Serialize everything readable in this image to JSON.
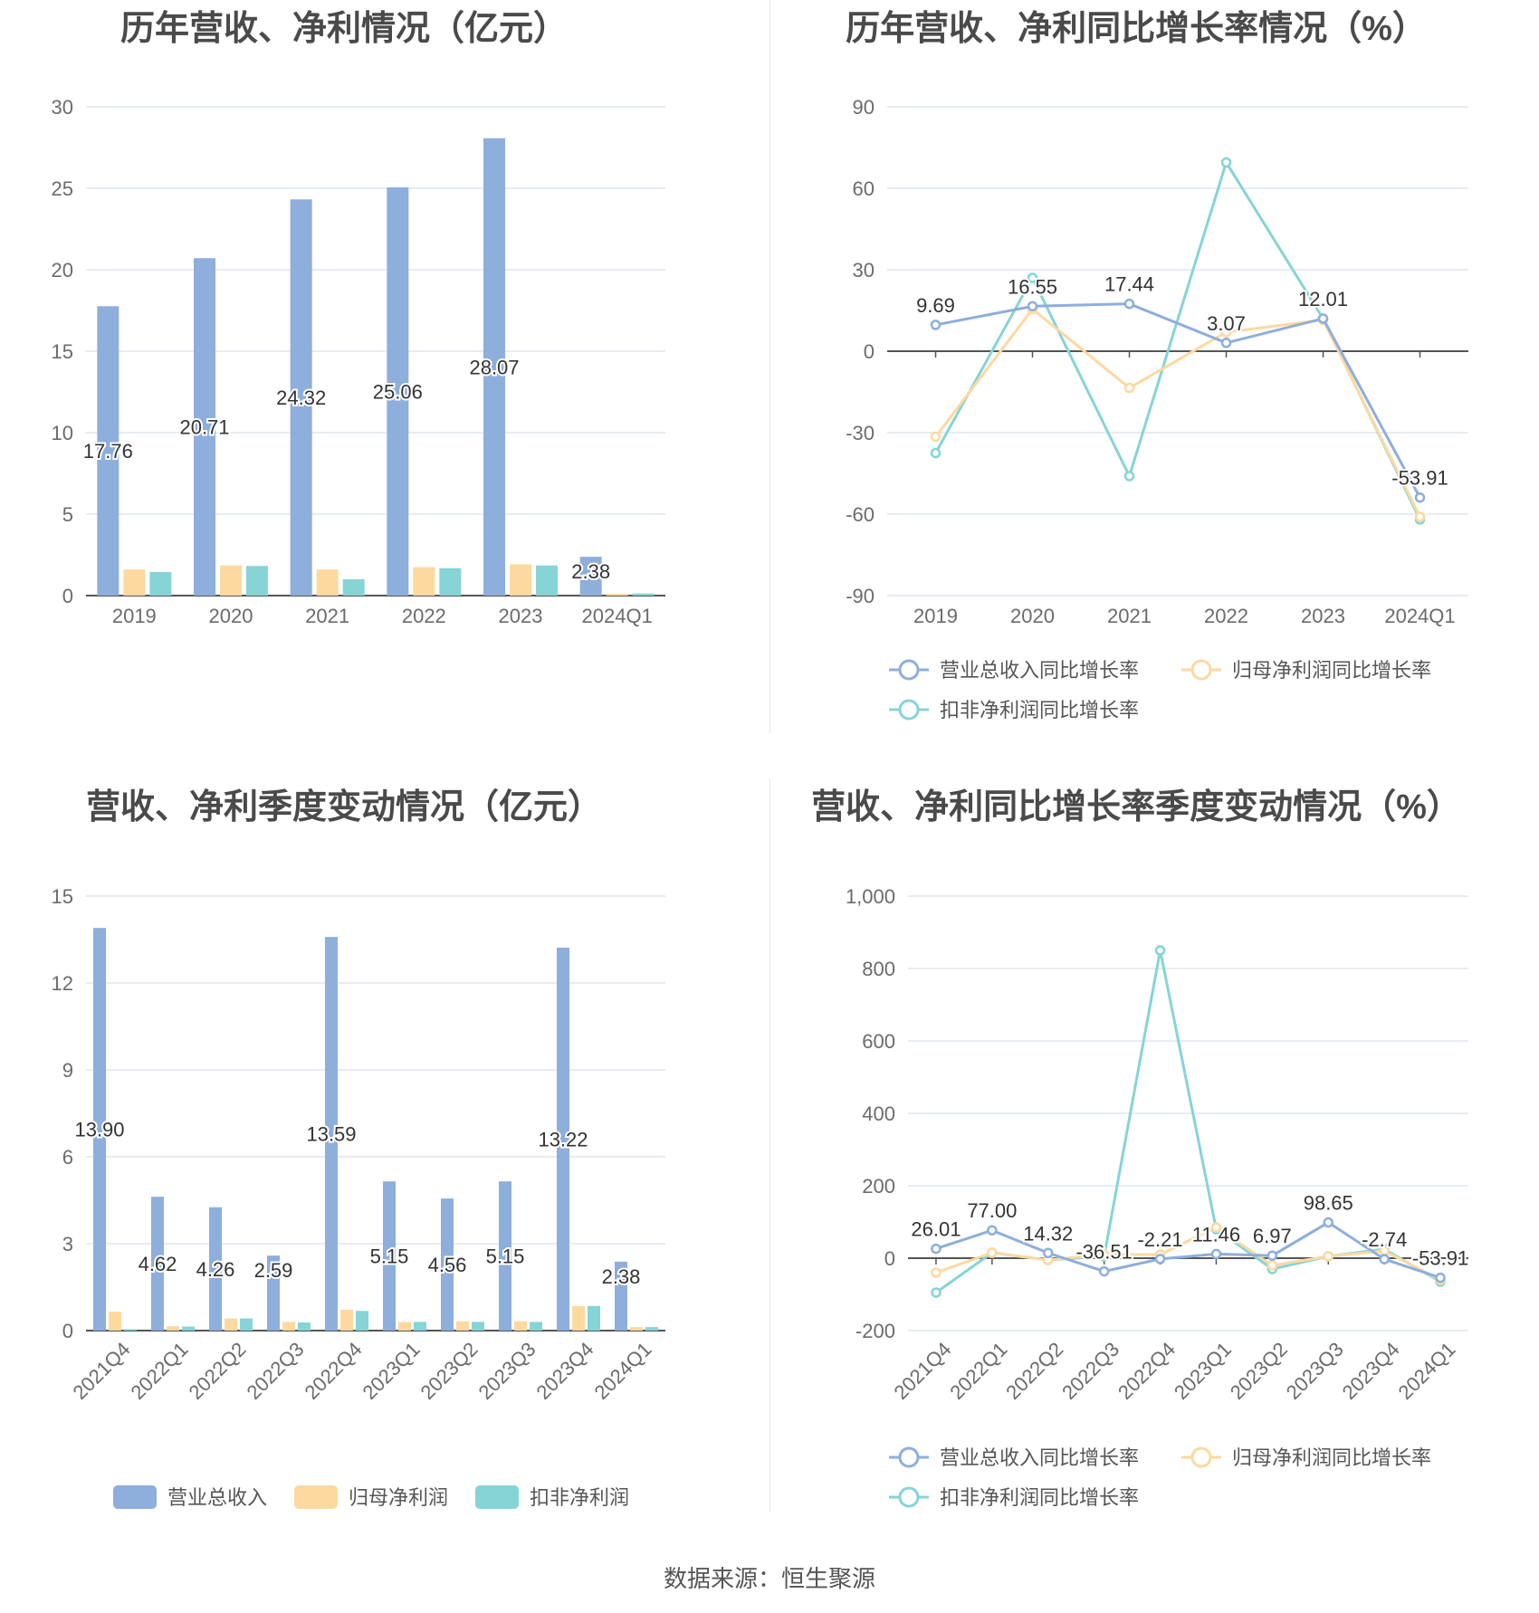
{
  "colors": {
    "revenue": "#8eaedc",
    "parent_profit": "#fdd9a0",
    "deducted_profit": "#86d4d6",
    "grid": "#e0e5ee",
    "axis_text": "#6b6b6b",
    "label_text": "#333333"
  },
  "source": "数据来源：恒生聚源",
  "chart_data": [
    {
      "type": "bar",
      "title": "历年营收、净利情况（亿元）",
      "categories": [
        "2019",
        "2020",
        "2021",
        "2022",
        "2023",
        "2024Q1"
      ],
      "ylim": [
        0,
        30
      ],
      "yticks": [
        0,
        5,
        10,
        15,
        20,
        25,
        30
      ],
      "series": [
        {
          "name": "营业总收入",
          "values": [
            17.76,
            20.71,
            24.32,
            25.06,
            28.07,
            2.38
          ]
        },
        {
          "name": "归母净利润",
          "values": [
            1.6,
            1.85,
            1.6,
            1.75,
            1.92,
            0.12
          ]
        },
        {
          "name": "扣非净利润",
          "values": [
            1.45,
            1.82,
            1.0,
            1.68,
            1.85,
            0.13
          ]
        }
      ],
      "data_labels": [
        "17.76",
        "20.71",
        "24.32",
        "25.06",
        "28.07",
        "2.38"
      ],
      "legend": "bottom",
      "grid": true
    },
    {
      "type": "line",
      "title": "历年营收、净利同比增长率情况（%）",
      "categories": [
        "2019",
        "2020",
        "2021",
        "2022",
        "2023",
        "2024Q1"
      ],
      "ylim": [
        -90,
        90
      ],
      "yticks": [
        -90,
        -60,
        -30,
        0,
        30,
        60,
        90
      ],
      "series": [
        {
          "name": "营业总收入同比增长率",
          "values": [
            9.69,
            16.55,
            17.44,
            3.07,
            12.01,
            -53.91
          ]
        },
        {
          "name": "归母净利润同比增长率",
          "values": [
            -31.5,
            15.5,
            -13.5,
            7.0,
            11.5,
            -61.0
          ]
        },
        {
          "name": "扣非净利润同比增长率",
          "values": [
            -37.5,
            27.0,
            -46.0,
            69.5,
            12.0,
            -62.0
          ]
        }
      ],
      "data_labels": [
        "9.69",
        "16.55",
        "17.44",
        "3.07",
        "12.01",
        "-53.91"
      ],
      "legend": "bottom",
      "grid": true
    },
    {
      "type": "bar",
      "title": "营收、净利季度变动情况（亿元）",
      "categories": [
        "2021Q4",
        "2022Q1",
        "2022Q2",
        "2022Q3",
        "2022Q4",
        "2023Q1",
        "2023Q2",
        "2023Q3",
        "2023Q4",
        "2024Q1"
      ],
      "ylim": [
        0,
        15
      ],
      "yticks": [
        0,
        3,
        6,
        9,
        12,
        15
      ],
      "series": [
        {
          "name": "营业总收入",
          "values": [
            13.9,
            4.62,
            4.26,
            2.59,
            13.59,
            5.15,
            4.56,
            5.15,
            13.22,
            2.38
          ]
        },
        {
          "name": "归母净利润",
          "values": [
            0.65,
            0.15,
            0.42,
            0.3,
            0.72,
            0.3,
            0.32,
            0.32,
            0.85,
            0.12
          ]
        },
        {
          "name": "扣非净利润",
          "values": [
            0.05,
            0.14,
            0.42,
            0.28,
            0.68,
            0.3,
            0.3,
            0.3,
            0.85,
            0.12
          ]
        }
      ],
      "data_labels": [
        "13.90",
        "4.62",
        "4.26",
        "2.59",
        "13.59",
        "5.15",
        "4.56",
        "5.15",
        "13.22",
        "2.38"
      ],
      "legend": "bottom",
      "grid": true
    },
    {
      "type": "line",
      "title": "营收、净利同比增长率季度变动情况（%）",
      "categories": [
        "2021Q4",
        "2022Q1",
        "2022Q2",
        "2022Q3",
        "2022Q4",
        "2023Q1",
        "2023Q2",
        "2023Q3",
        "2023Q4",
        "2024Q1"
      ],
      "ylim": [
        -200,
        1000
      ],
      "yticks": [
        -200,
        0,
        200,
        400,
        600,
        800,
        1000
      ],
      "ytick_labels": [
        "-200",
        "0",
        "200",
        "400",
        "600",
        "800",
        "1,000"
      ],
      "series": [
        {
          "name": "营业总收入同比增长率",
          "values": [
            26.01,
            77.0,
            14.32,
            -36.51,
            -2.21,
            11.46,
            6.97,
            98.65,
            -2.74,
            -53.91
          ]
        },
        {
          "name": "归母净利润同比增长率",
          "values": [
            -40,
            15,
            -5,
            10,
            10,
            85,
            -20,
            5,
            20,
            -60
          ]
        },
        {
          "name": "扣非净利润同比增长率",
          "values": [
            -95,
            15,
            -5,
            5,
            850,
            80,
            -30,
            5,
            25,
            -65
          ]
        }
      ],
      "data_labels": [
        "26.01",
        "77.00",
        "14.32",
        "-36.51",
        "-2.21",
        "11.46",
        "6.97",
        "98.65",
        "-2.74",
        "-53.91"
      ],
      "legend": "bottom",
      "grid": true
    }
  ]
}
